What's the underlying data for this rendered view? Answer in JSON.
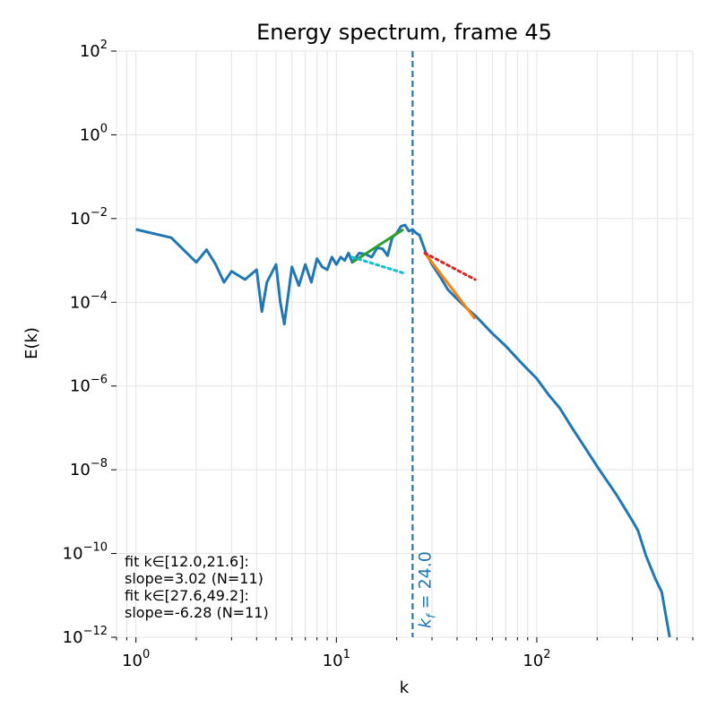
{
  "chart_data": {
    "type": "line",
    "title": "Energy spectrum, frame 45",
    "xlabel": "k",
    "ylabel": "E(k)",
    "xscale": "log",
    "yscale": "log",
    "xlim": [
      0.8,
      600
    ],
    "ylim": [
      1e-12,
      100
    ],
    "grid": true,
    "x_ticks": [
      {
        "base": "10",
        "exp": "0",
        "value": 1
      },
      {
        "base": "10",
        "exp": "1",
        "value": 10
      },
      {
        "base": "10",
        "exp": "2",
        "value": 100
      }
    ],
    "y_ticks": [
      {
        "base": "10",
        "exp": "2",
        "value": 100
      },
      {
        "base": "10",
        "exp": "0",
        "value": 1
      },
      {
        "base": "10",
        "exp": "−2",
        "value": 0.01
      },
      {
        "base": "10",
        "exp": "−4",
        "value": 0.0001
      },
      {
        "base": "10",
        "exp": "−6",
        "value": 1e-06
      },
      {
        "base": "10",
        "exp": "−8",
        "value": 1e-08
      },
      {
        "base": "10",
        "exp": "−10",
        "value": 1e-10
      },
      {
        "base": "10",
        "exp": "−12",
        "value": 1e-12
      }
    ],
    "series": [
      {
        "color": "#1f77b4",
        "points": [
          [
            1.0,
            0.0055
          ],
          [
            1.5,
            0.0035
          ],
          [
            2.0,
            0.0009
          ],
          [
            2.25,
            0.0018
          ],
          [
            2.5,
            0.0008
          ],
          [
            2.75,
            0.0003
          ],
          [
            3.0,
            0.00055
          ],
          [
            3.5,
            0.00035
          ],
          [
            4.0,
            0.0006
          ],
          [
            4.25,
            6e-05
          ],
          [
            4.5,
            0.0003
          ],
          [
            5.0,
            0.0008
          ],
          [
            5.25,
            0.0001
          ],
          [
            5.5,
            3e-05
          ],
          [
            6.0,
            0.0007
          ],
          [
            6.5,
            0.00025
          ],
          [
            7.0,
            0.0008
          ],
          [
            7.5,
            0.0003
          ],
          [
            8.0,
            0.0011
          ],
          [
            8.5,
            0.0007
          ],
          [
            9.0,
            0.0006
          ],
          [
            9.5,
            0.0012
          ],
          [
            10.0,
            0.0008
          ],
          [
            10.5,
            0.0012
          ],
          [
            11.0,
            0.001
          ],
          [
            11.5,
            0.0015
          ],
          [
            12.0,
            0.0009
          ],
          [
            13.0,
            0.0015
          ],
          [
            14.0,
            0.0014
          ],
          [
            15.0,
            0.0012
          ],
          [
            16.0,
            0.002
          ],
          [
            17.0,
            0.0019
          ],
          [
            18.0,
            0.0013
          ],
          [
            19.0,
            0.0035
          ],
          [
            20.0,
            0.0045
          ],
          [
            21.0,
            0.0065
          ],
          [
            22.0,
            0.007
          ],
          [
            23.0,
            0.005
          ],
          [
            24.0,
            0.0055
          ],
          [
            25.0,
            0.0045
          ],
          [
            26.0,
            0.004
          ],
          [
            28.0,
            0.0015
          ],
          [
            30.0,
            0.0008
          ],
          [
            33.0,
            0.0004
          ],
          [
            36.0,
            0.0002
          ],
          [
            40.0,
            0.00012
          ],
          [
            45.0,
            7e-05
          ],
          [
            50.0,
            4.5e-05
          ],
          [
            60.0,
            1.8e-05
          ],
          [
            70.0,
            9e-06
          ],
          [
            80.0,
            4.5e-06
          ],
          [
            90.0,
            2.5e-06
          ],
          [
            100.0,
            1.5e-06
          ],
          [
            115.0,
            6e-07
          ],
          [
            130.0,
            3e-07
          ],
          [
            150.0,
            1e-07
          ],
          [
            170.0,
            4e-08
          ],
          [
            200.0,
            1.2e-08
          ],
          [
            250.0,
            2.5e-09
          ],
          [
            300.0,
            6e-10
          ],
          [
            320.0,
            3.5e-10
          ],
          [
            350.0,
            9e-11
          ],
          [
            390.0,
            2.5e-11
          ],
          [
            420.0,
            1.2e-11
          ],
          [
            460.0,
            1e-12
          ]
        ]
      }
    ],
    "fit_lines": [
      {
        "color": "#2ca02c",
        "style": "solid",
        "points": [
          [
            12.0,
            0.0009
          ],
          [
            21.6,
            0.0055
          ]
        ]
      },
      {
        "color": "#17becf",
        "style": "dotted",
        "points": [
          [
            12.0,
            0.0012
          ],
          [
            21.6,
            0.0005
          ]
        ]
      },
      {
        "color": "#ff7f0e",
        "style": "solid",
        "points": [
          [
            27.6,
            0.0015
          ],
          [
            49.2,
            4e-05
          ]
        ]
      },
      {
        "color": "#d62728",
        "style": "dotted",
        "points": [
          [
            27.6,
            0.0015
          ],
          [
            49.2,
            0.00035
          ]
        ]
      }
    ],
    "vline": {
      "x": 24.0,
      "color": "#1f77b4",
      "label": "k",
      "label_sub": "f",
      "label_value": " = 24.0"
    },
    "annotations": [
      "fit k∈[12.0,21.6]:",
      "slope=3.02 (N=11)",
      "fit k∈[27.6,49.2]:",
      "slope=-6.28 (N=11)"
    ]
  }
}
